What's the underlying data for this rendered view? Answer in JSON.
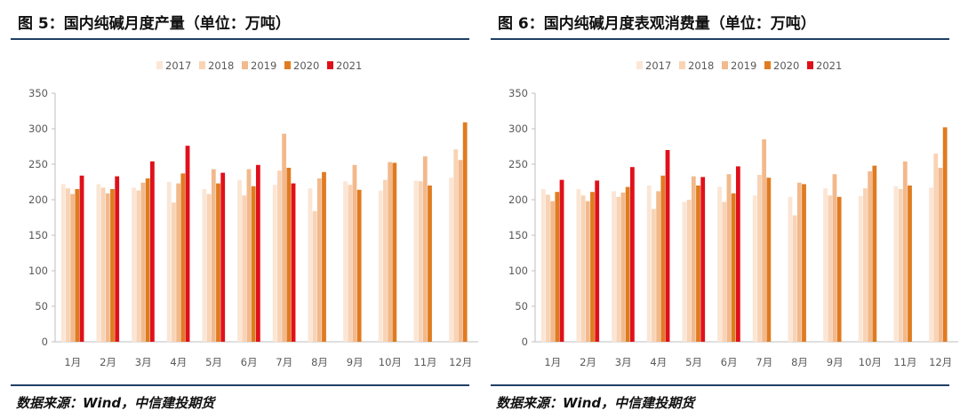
{
  "figures": [
    {
      "title": "图 5：国内纯碱月度产量（单位：万吨）",
      "source": "数据来源：Wind，中信建投期货"
    },
    {
      "title": "图 6：国内纯碱月度表观消费量（单位：万吨）",
      "source": "数据来源：Wind，中信建投期货"
    }
  ],
  "series_colors": [
    "#fbe6d6",
    "#f8d3b4",
    "#f2b98c",
    "#e07b20",
    "#e0101b"
  ],
  "chart_data": [
    {
      "type": "bar",
      "title": "",
      "categories": [
        "1月",
        "2月",
        "3月",
        "4月",
        "5月",
        "6月",
        "7月",
        "8月",
        "9月",
        "10月",
        "11月",
        "12月"
      ],
      "ylim": [
        0,
        350
      ],
      "yticks": [
        0,
        50,
        100,
        150,
        200,
        250,
        300,
        350
      ],
      "grid": false,
      "legend_position": "top",
      "series": [
        {
          "name": "2017",
          "values": [
            222,
            222,
            217,
            225,
            215,
            228,
            221,
            216,
            226,
            213,
            227,
            231
          ]
        },
        {
          "name": "2018",
          "values": [
            216,
            217,
            213,
            196,
            208,
            206,
            241,
            184,
            221,
            228,
            226,
            271
          ]
        },
        {
          "name": "2019",
          "values": [
            208,
            209,
            224,
            223,
            243,
            243,
            293,
            230,
            249,
            253,
            261,
            256
          ]
        },
        {
          "name": "2020",
          "values": [
            215,
            215,
            230,
            237,
            223,
            219,
            245,
            239,
            214,
            252,
            220,
            309
          ]
        },
        {
          "name": "2021",
          "values": [
            234,
            233,
            254,
            276,
            238,
            249,
            223,
            null,
            null,
            null,
            null,
            null
          ]
        }
      ]
    },
    {
      "type": "bar",
      "title": "",
      "categories": [
        "1月",
        "2月",
        "3月",
        "4月",
        "5月",
        "6月",
        "7月",
        "8月",
        "9月",
        "10月",
        "11月",
        "12月"
      ],
      "ylim": [
        0,
        350
      ],
      "yticks": [
        0,
        50,
        100,
        150,
        200,
        250,
        300,
        350
      ],
      "grid": false,
      "legend_position": "top",
      "series": [
        {
          "name": "2017",
          "values": [
            215,
            215,
            212,
            220,
            197,
            218,
            206,
            204,
            216,
            205,
            219,
            217
          ]
        },
        {
          "name": "2018",
          "values": [
            207,
            206,
            204,
            187,
            200,
            197,
            235,
            178,
            206,
            216,
            215,
            265
          ]
        },
        {
          "name": "2019",
          "values": [
            198,
            198,
            210,
            212,
            233,
            236,
            285,
            224,
            236,
            240,
            254,
            245
          ]
        },
        {
          "name": "2020",
          "values": [
            211,
            211,
            218,
            234,
            220,
            209,
            231,
            222,
            204,
            248,
            220,
            302
          ]
        },
        {
          "name": "2021",
          "values": [
            228,
            227,
            246,
            270,
            232,
            247,
            null,
            null,
            null,
            null,
            null,
            null
          ]
        }
      ]
    }
  ]
}
